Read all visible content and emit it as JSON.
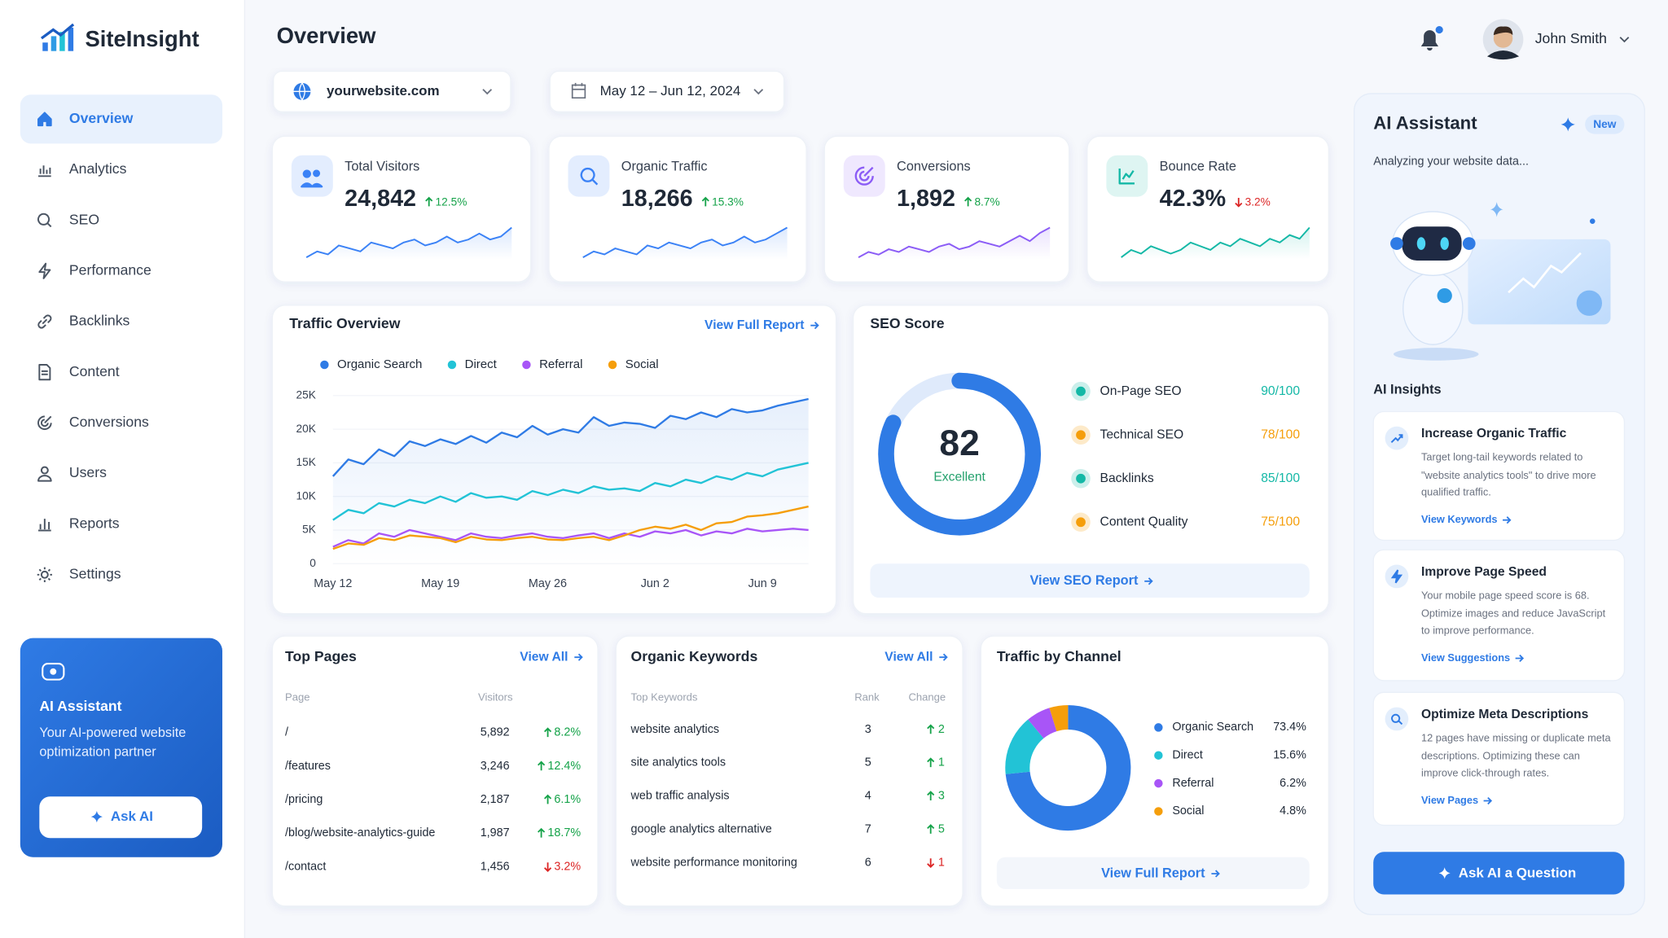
{
  "brand": "SiteInsight",
  "nav": [
    "Overview",
    "Analytics",
    "SEO",
    "Performance",
    "Backlinks",
    "Content",
    "Conversions",
    "Users",
    "Reports",
    "Settings"
  ],
  "promo": {
    "title": "AI Assistant",
    "text": "Your AI-powered website optimization partner",
    "button": "Ask AI"
  },
  "header": {
    "title": "Overview",
    "user": "John Smith"
  },
  "filters": {
    "site": "yourwebsite.com",
    "date": "May 12 – Jun 12, 2024"
  },
  "kpis": [
    {
      "label": "Total Visitors",
      "value": "24,842",
      "change": "12.5%",
      "direction": "up",
      "color": "#3b82f6",
      "trend": [
        8,
        10,
        9,
        12,
        11,
        10,
        13,
        12,
        11,
        13,
        14,
        12,
        13,
        15,
        13,
        14,
        16,
        14,
        15,
        18
      ]
    },
    {
      "label": "Organic Traffic",
      "value": "18,266",
      "change": "15.3%",
      "direction": "up",
      "color": "#3b82f6",
      "trend": [
        7,
        9,
        8,
        10,
        9,
        8,
        11,
        10,
        12,
        11,
        10,
        12,
        13,
        11,
        12,
        14,
        12,
        13,
        15,
        17
      ]
    },
    {
      "label": "Conversions",
      "value": "1,892",
      "change": "8.7%",
      "direction": "up",
      "color": "#8b5cf6",
      "trend": [
        6,
        8,
        7,
        9,
        8,
        10,
        9,
        8,
        10,
        11,
        9,
        10,
        12,
        11,
        10,
        12,
        14,
        12,
        15,
        17
      ]
    },
    {
      "label": "Bounce Rate",
      "value": "42.3%",
      "change": "3.2%",
      "direction": "down",
      "color": "#14b8a6",
      "trend": [
        8,
        10,
        9,
        11,
        10,
        9,
        10,
        12,
        11,
        10,
        12,
        11,
        13,
        12,
        11,
        13,
        12,
        14,
        13,
        16
      ]
    }
  ],
  "chart_data": [
    {
      "type": "line",
      "title": "Traffic Overview",
      "link": "View Full Report",
      "categories": [
        "May 12",
        null,
        null,
        null,
        null,
        null,
        null,
        "May 19",
        null,
        null,
        null,
        null,
        null,
        null,
        "May 26",
        null,
        null,
        null,
        null,
        null,
        null,
        "Jun 2",
        null,
        null,
        null,
        null,
        null,
        null,
        "Jun 9",
        null,
        null,
        null
      ],
      "series": [
        {
          "name": "Organic Search",
          "color": "#2f7be5",
          "values": [
            13000,
            15500,
            14800,
            17000,
            16000,
            18200,
            17500,
            18500,
            17800,
            19000,
            18000,
            19500,
            18800,
            20500,
            19200,
            20000,
            19500,
            21800,
            20500,
            21000,
            20800,
            20200,
            22000,
            21500,
            22500,
            21800,
            23000,
            22500,
            22800,
            23500,
            24000,
            24500
          ]
        },
        {
          "name": "Direct",
          "color": "#22c3d6",
          "values": [
            6500,
            8000,
            7500,
            9000,
            8500,
            9500,
            9000,
            10000,
            9200,
            10500,
            9800,
            10000,
            9500,
            10800,
            10200,
            11000,
            10500,
            11500,
            11000,
            11200,
            10800,
            12000,
            11500,
            12500,
            12000,
            13000,
            12500,
            13500,
            13000,
            14000,
            14500,
            15000
          ]
        },
        {
          "name": "Referral",
          "color": "#a855f7",
          "values": [
            2500,
            3500,
            3000,
            4500,
            4000,
            5000,
            4500,
            4000,
            3500,
            4500,
            4000,
            3800,
            4200,
            4500,
            4000,
            3800,
            4200,
            4500,
            3800,
            4500,
            4000,
            4800,
            4500,
            5000,
            4200,
            4800,
            4500,
            5200,
            4800,
            5000,
            5200,
            5000
          ]
        },
        {
          "name": "Social",
          "color": "#f59e0b",
          "values": [
            2200,
            3000,
            2800,
            3800,
            3500,
            4200,
            4000,
            3800,
            3200,
            4000,
            3600,
            3500,
            3800,
            4000,
            3600,
            3500,
            3800,
            4000,
            3500,
            4200,
            5000,
            5500,
            5200,
            5800,
            5000,
            6000,
            6200,
            7000,
            7200,
            7500,
            8000,
            8500
          ]
        }
      ],
      "ylim": [
        0,
        25000
      ],
      "yticks": [
        0,
        {
          "value": 5000,
          "label": "5K"
        },
        {
          "value": 10000,
          "label": "10K"
        },
        {
          "value": 15000,
          "label": "15K"
        },
        {
          "value": 20000,
          "label": "20K"
        },
        {
          "value": 25000,
          "label": "25K"
        }
      ],
      "grid": true
    },
    {
      "type": "gauge",
      "title": "SEO Score",
      "value": 82,
      "label": "Excellent",
      "ylim": [
        0,
        100
      ],
      "color": "#2f7be5",
      "link": "View SEO Report",
      "items": [
        {
          "name": "On-Page SEO",
          "score": "90/100",
          "color": "#14b8a6"
        },
        {
          "name": "Technical SEO",
          "score": "78/100",
          "color": "#f59e0b"
        },
        {
          "name": "Backlinks",
          "score": "85/100",
          "color": "#14b8a6"
        },
        {
          "name": "Content Quality",
          "score": "75/100",
          "color": "#f59e0b"
        }
      ]
    },
    {
      "type": "donut",
      "title": "Traffic by Channel",
      "link": "View Full Report",
      "categories": [
        "Organic Search",
        "Direct",
        "Referral",
        "Social"
      ],
      "values": [
        73.4,
        15.6,
        6.2,
        4.8
      ],
      "value_labels": [
        "73.4%",
        "15.6%",
        "6.2%",
        "4.8%"
      ],
      "colors": [
        "#2f7be5",
        "#22c3d6",
        "#a855f7",
        "#f59e0b"
      ]
    }
  ],
  "top_pages": {
    "title": "Top Pages",
    "link": "View All",
    "columns": [
      "Page",
      "Visitors"
    ],
    "rows": [
      {
        "page": "/",
        "visitors": "5,892",
        "change": "8.2%",
        "direction": "up"
      },
      {
        "page": "/features",
        "visitors": "3,246",
        "change": "12.4%",
        "direction": "up"
      },
      {
        "page": "/pricing",
        "visitors": "2,187",
        "change": "6.1%",
        "direction": "up"
      },
      {
        "page": "/blog/website-analytics-guide",
        "visitors": "1,987",
        "change": "18.7%",
        "direction": "up"
      },
      {
        "page": "/contact",
        "visitors": "1,456",
        "change": "3.2%",
        "direction": "down"
      }
    ]
  },
  "keywords": {
    "title": "Organic Keywords",
    "link": "View All",
    "columns": [
      "Top Keywords",
      "Rank",
      "Change"
    ],
    "rows": [
      {
        "keyword": "website analytics",
        "rank": 3,
        "change": 2,
        "direction": "up"
      },
      {
        "keyword": "site analytics tools",
        "rank": 5,
        "change": 1,
        "direction": "up"
      },
      {
        "keyword": "web traffic analysis",
        "rank": 4,
        "change": 3,
        "direction": "up"
      },
      {
        "keyword": "google analytics alternative",
        "rank": 7,
        "change": 5,
        "direction": "up"
      },
      {
        "keyword": "website performance monitoring",
        "rank": 6,
        "change": 1,
        "direction": "down"
      }
    ]
  },
  "assistant": {
    "title": "AI Assistant",
    "badge": "New",
    "subtitle": "Analyzing your website data...",
    "insights_title": "AI Insights",
    "insights": [
      {
        "title": "Increase Organic Traffic",
        "text": "Target long-tail keywords related to \"website analytics tools\" to drive more qualified traffic.",
        "link": "View Keywords"
      },
      {
        "title": "Improve Page Speed",
        "text": "Your mobile page speed score is 68. Optimize images and reduce JavaScript to improve performance.",
        "link": "View Suggestions"
      },
      {
        "title": "Optimize Meta Descriptions",
        "text": "12 pages have missing or duplicate meta descriptions. Optimizing these can improve click-through rates.",
        "link": "View Pages"
      }
    ],
    "button": "Ask AI a Question"
  }
}
